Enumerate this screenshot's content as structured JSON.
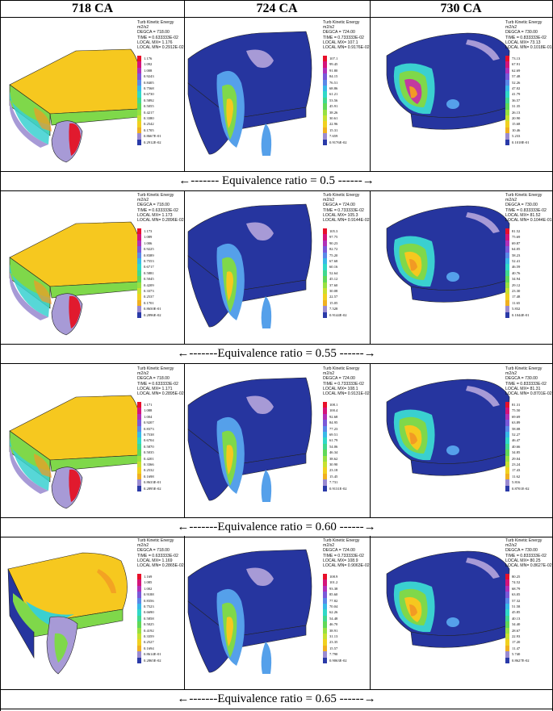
{
  "columns": [
    "718 CA",
    "724 CA",
    "730 CA"
  ],
  "rows": [
    {
      "caption": "←------- Equivalence ratio = 0.5 ------→",
      "panels": [
        {
          "title": "Turb Kinetic Energy",
          "unit": "m2/s2",
          "degca": "DEGCA = 718.00",
          "time": "TIME = 0.633333E-02",
          "max": "LOCAL MX= 1.176",
          "min": "LOCAL MN= 0.2912E-02",
          "scale": [
            "1.176",
            "1.092",
            "1.008",
            "0.9243",
            "0.8405",
            "0.7568",
            "0.6730",
            "0.5892",
            "0.5055",
            "0.4217",
            "0.3380",
            "0.2542",
            "0.1705",
            "0.8667E-01",
            "0.2912E-02"
          ]
        },
        {
          "title": "Turb Kinetic Energy",
          "unit": "m2/s2",
          "degca": "DEGCA = 724.00",
          "time": "TIME = 0.733333E-02",
          "max": "LOCAL MX= 107.1",
          "min": "LOCAL MN= 0.9176E-02",
          "scale": [
            "107.1",
            "99.45",
            "91.80",
            "84.15",
            "76.51",
            "68.86",
            "61.21",
            "53.56",
            "45.91",
            "38.26",
            "30.61",
            "22.96",
            "15.31",
            "7.659",
            "0.9176E-02"
          ]
        },
        {
          "title": "Turb Kinetic Energy",
          "unit": "m2/s2",
          "degca": "DEGCA = 730.00",
          "time": "TIME = 0.833333E-02",
          "max": "LOCAL MX= 73.13",
          "min": "LOCAL MN= 0.1018E-01",
          "scale": [
            "73.13",
            "67.91",
            "62.69",
            "57.48",
            "52.26",
            "47.02",
            "41.79",
            "36.57",
            "31.35",
            "26.13",
            "20.90",
            "15.68",
            "10.46",
            "5.233",
            "0.1018E-01"
          ]
        }
      ]
    },
    {
      "caption": "←-------Equivalence ratio = 0.55 ------→",
      "panels": [
        {
          "title": "Turb Kinetic Energy",
          "unit": "m2/s2",
          "degca": "DEGCA = 718.00",
          "time": "TIME = 0.633333E-02",
          "max": "LOCAL MX= 1.173",
          "min": "LOCAL MN= 0.2896E-02",
          "scale": [
            "1.173",
            "1.089",
            "1.006",
            "0.9225",
            "0.8389",
            "0.7553",
            "0.6717",
            "0.5881",
            "0.5045",
            "0.4209",
            "0.3373",
            "0.2537",
            "0.1701",
            "0.8650E-01",
            "0.2896E-02"
          ]
        },
        {
          "title": "Turb Kinetic Energy",
          "unit": "m2/s2",
          "degca": "DEGCA = 724.00",
          "time": "TIME = 0.733333E-02",
          "max": "LOCAL MX= 105.3",
          "min": "LOCAL MN= 0.9144E-02",
          "scale": [
            "105.3",
            "97.75",
            "90.23",
            "82.72",
            "75.20",
            "67.68",
            "60.16",
            "52.64",
            "45.12",
            "37.60",
            "30.08",
            "22.57",
            "15.05",
            "7.528",
            "0.9144E-02"
          ]
        },
        {
          "title": "Turb Kinetic Energy",
          "unit": "m2/s2",
          "degca": "DEGCA = 730.00",
          "time": "TIME = 0.833333E-02",
          "max": "LOCAL MX= 81.52",
          "min": "LOCAL MN= 0.1044E-01",
          "scale": [
            "81.52",
            "75.69",
            "69.87",
            "64.05",
            "58.23",
            "52.41",
            "46.59",
            "40.76",
            "34.94",
            "29.12",
            "23.30",
            "17.48",
            "11.65",
            "5.832",
            "0.1044E-01"
          ]
        }
      ]
    },
    {
      "caption": "←-------Equivalence ratio = 0.60 ------→",
      "panels": [
        {
          "title": "Turb Kinetic Energy",
          "unit": "m2/s2",
          "degca": "DEGCA = 718.00",
          "time": "TIME = 0.633333E-02",
          "max": "LOCAL MX= 1.171",
          "min": "LOCAL MN= 0.2895E-02",
          "scale": [
            "1.171",
            "1.088",
            "1.004",
            "0.9207",
            "0.8373",
            "0.7538",
            "0.6704",
            "0.5870",
            "0.5035",
            "0.4201",
            "0.3366",
            "0.2532",
            "0.1698",
            "0.8633E-01",
            "0.2895E-02"
          ]
        },
        {
          "title": "Turb Kinetic Energy",
          "unit": "m2/s2",
          "degca": "DEGCA = 724.00",
          "time": "TIME = 0.733333E-02",
          "max": "LOCAL MX= 108.1",
          "min": "LOCAL MN= 0.9131E-02",
          "scale": [
            "108.1",
            "100.4",
            "92.68",
            "84.95",
            "77.23",
            "69.51",
            "61.79",
            "54.06",
            "46.34",
            "38.62",
            "30.90",
            "23.18",
            "15.45",
            "7.731",
            "0.9131E-02"
          ]
        },
        {
          "title": "Turb Kinetic Energy",
          "unit": "m2/s2",
          "degca": "DEGCA = 730.00",
          "time": "TIME = 0.833333E-02",
          "max": "LOCAL MX= 81.31",
          "min": "LOCAL MN= 0.8701E-02",
          "scale": [
            "81.31",
            "75.50",
            "69.69",
            "63.89",
            "58.08",
            "52.27",
            "46.47",
            "40.66",
            "34.85",
            "29.04",
            "23.24",
            "17.43",
            "11.62",
            "5.816",
            "0.8701E-02"
          ]
        }
      ]
    },
    {
      "caption": "←-------Equivalence ratio = 0.65 ------→",
      "panels": [
        {
          "title": "Turb Kinetic Energy",
          "unit": "m2/s2",
          "degca": "DEGCA = 718.00",
          "time": "TIME = 0.633333E-02",
          "max": "LOCAL MX= 1.169",
          "min": "LOCAL MN= 0.2865E-02",
          "scale": [
            "1.169",
            "1.085",
            "1.002",
            "0.9188",
            "0.8356",
            "0.7523",
            "0.6690",
            "0.5858",
            "0.5025",
            "0.4192",
            "0.3359",
            "0.2527",
            "0.1694",
            "0.8614E-01",
            "0.2865E-02"
          ]
        },
        {
          "title": "Turb Kinetic Energy",
          "unit": "m2/s2",
          "degca": "DEGCA = 724.00",
          "time": "TIME = 0.733333E-02",
          "max": "LOCAL MX= 108.9",
          "min": "LOCAL MN= 0.9063E-02",
          "scale": [
            "108.9",
            "101.2",
            "93.38",
            "85.60",
            "77.82",
            "70.04",
            "62.26",
            "54.48",
            "46.70",
            "38.91",
            "31.13",
            "23.35",
            "15.57",
            "7.790",
            "0.9063E-02"
          ]
        },
        {
          "title": "Turb Kinetic Energy",
          "unit": "m2/s2",
          "degca": "DEGCA = 730.00",
          "time": "TIME = 0.833333E-02",
          "max": "LOCAL MX= 80.25",
          "min": "LOCAL MN= 0.8627E-02",
          "scale": [
            "80.25",
            "74.52",
            "68.79",
            "63.05",
            "57.32",
            "51.58",
            "45.85",
            "40.13",
            "34.40",
            "28.67",
            "22.93",
            "17.20",
            "11.47",
            "5.740",
            "0.8627E-02"
          ]
        }
      ]
    }
  ],
  "scale_colors": [
    "#e8102a",
    "#d4147a",
    "#b030b8",
    "#7a58d8",
    "#5a88e8",
    "#38b8e8",
    "#30d8c8",
    "#40d890",
    "#60d858",
    "#98e040",
    "#c8e030",
    "#f0d020",
    "#f0b020",
    "#9a8ad0",
    "#2a3aa8"
  ],
  "palette": {
    "bg_blue": "#26359f",
    "yellow": "#f6c81f",
    "green": "#7fd84a",
    "cyan": "#3ad0d0",
    "lilac": "#a79ad6",
    "red": "#e11a2e",
    "magenta": "#c23aa0",
    "orange": "#f29a24",
    "ltblue": "#55a0ea"
  }
}
